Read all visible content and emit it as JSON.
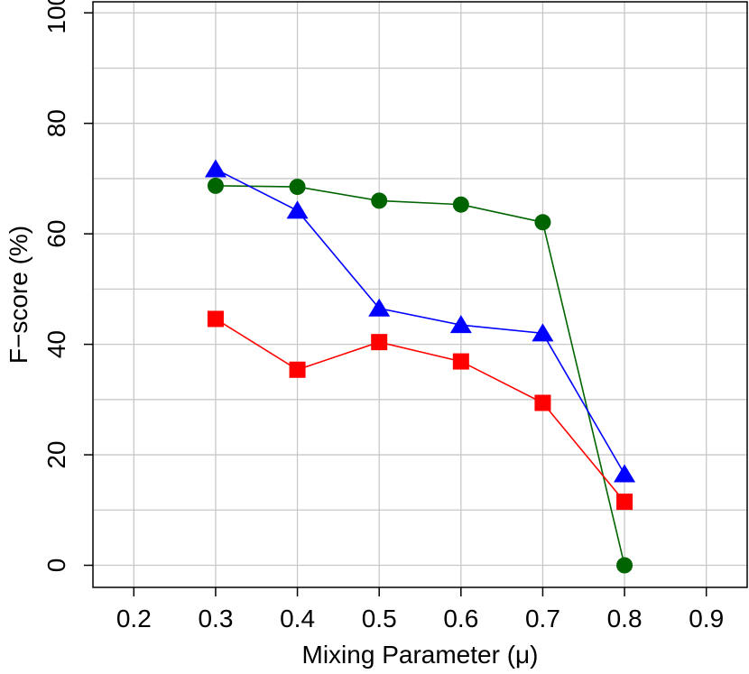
{
  "chart_data": {
    "type": "line",
    "xlabel": "Mixing Parameter (μ)",
    "ylabel": "F−score (%)",
    "xlim": [
      0.15,
      0.95
    ],
    "ylim": [
      -4,
      102
    ],
    "xticks": [
      "0.2",
      "0.3",
      "0.4",
      "0.5",
      "0.6",
      "0.7",
      "0.8",
      "0.9"
    ],
    "yticks": [
      "0",
      "20",
      "40",
      "60",
      "80",
      "100"
    ],
    "grid": true,
    "x": [
      0.3,
      0.4,
      0.5,
      0.6,
      0.7,
      0.8
    ],
    "series": [
      {
        "marker": "circle",
        "color": "#006400",
        "values": [
          68.7,
          68.5,
          66.0,
          65.3,
          62.1,
          0.0
        ]
      },
      {
        "marker": "triangle",
        "color": "#0000ff",
        "values": [
          71.7,
          64.2,
          46.5,
          43.5,
          42.0,
          16.5
        ]
      },
      {
        "marker": "square",
        "color": "#ff0000",
        "values": [
          44.6,
          35.4,
          40.4,
          36.9,
          29.4,
          11.5
        ]
      }
    ]
  }
}
